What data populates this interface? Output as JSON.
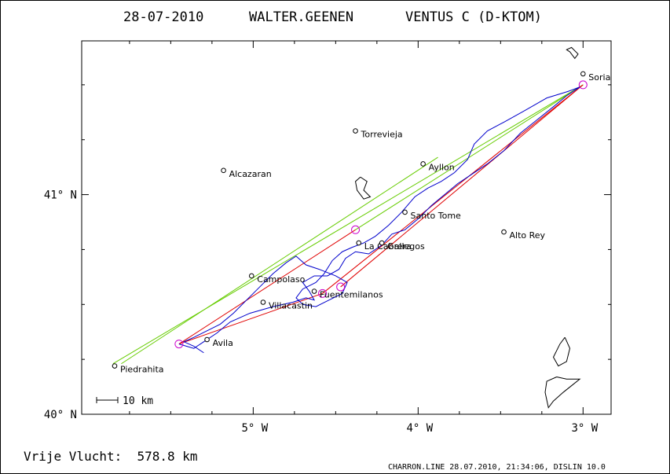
{
  "header": {
    "date": "28-07-2010",
    "pilot": "WALTER.GEENEN",
    "glider": "VENTUS C (D-KTOM)"
  },
  "axes": {
    "x_ticks": [
      {
        "value": -5,
        "label": "5° W"
      },
      {
        "value": -4,
        "label": "4° W"
      },
      {
        "value": -3,
        "label": "3° W"
      }
    ],
    "y_ticks": [
      {
        "value": 41,
        "label": "41° N"
      },
      {
        "value": 40,
        "label": "40° N"
      }
    ],
    "xlim": [
      -6.04,
      -2.83
    ],
    "ylim": [
      40.0,
      41.7
    ]
  },
  "scale_bar": {
    "label": "10 km"
  },
  "footer": {
    "distance": "Vrije Vlucht:  578.8 km",
    "credit": "CHARRON.LINE 28.07.2010, 21:34:06, DISLIN 10.0"
  },
  "places": [
    {
      "name": "Soria",
      "lon": -3.0,
      "lat": 41.55
    },
    {
      "name": "Torrevieja",
      "lon": -4.38,
      "lat": 41.29
    },
    {
      "name": "Ayllon",
      "lon": -3.97,
      "lat": 41.14
    },
    {
      "name": "Alcazaran",
      "lon": -5.18,
      "lat": 41.11
    },
    {
      "name": "Santo Tome",
      "lon": -4.08,
      "lat": 40.92
    },
    {
      "name": "Alto Rey",
      "lon": -3.48,
      "lat": 40.83
    },
    {
      "name": "La Cabrera",
      "lon": -4.36,
      "lat": 40.78
    },
    {
      "name": "Gallegos",
      "lon": -4.22,
      "lat": 40.78
    },
    {
      "name": "Campolaso",
      "lon": -5.01,
      "lat": 40.63
    },
    {
      "name": "Fuentemilanos",
      "lon": -4.63,
      "lat": 40.56
    },
    {
      "name": "Villacastin",
      "lon": -4.94,
      "lat": 40.51
    },
    {
      "name": "Avila",
      "lon": -5.28,
      "lat": 40.34
    },
    {
      "name": "Piedrahita",
      "lon": -5.84,
      "lat": 40.22
    }
  ],
  "turnpoints": [
    {
      "lon": -5.45,
      "lat": 40.32
    },
    {
      "lon": -4.58,
      "lat": 40.55
    },
    {
      "lon": -4.47,
      "lat": 40.58
    },
    {
      "lon": -4.38,
      "lat": 40.84
    },
    {
      "lon": -3.0,
      "lat": 41.5
    }
  ],
  "legs": {
    "red": [
      [
        [
          -5.45,
          40.32
        ],
        [
          -4.58,
          40.55
        ]
      ],
      [
        [
          -4.58,
          40.55
        ],
        [
          -3.0,
          41.5
        ]
      ],
      [
        [
          -5.45,
          40.32
        ],
        [
          -4.38,
          40.84
        ]
      ],
      [
        [
          -4.47,
          40.58
        ],
        [
          -3.0,
          41.5
        ]
      ]
    ],
    "green": [
      [
        [
          -5.85,
          40.23
        ],
        [
          -3.0,
          41.5
        ]
      ],
      [
        [
          -5.8,
          40.23
        ],
        [
          -3.88,
          41.17
        ]
      ],
      [
        [
          -4.38,
          40.84
        ],
        [
          -3.0,
          41.5
        ]
      ]
    ]
  },
  "track": [
    [
      -5.45,
      40.32
    ],
    [
      -5.36,
      40.3
    ],
    [
      -5.3,
      40.33
    ],
    [
      -5.22,
      40.37
    ],
    [
      -5.14,
      40.42
    ],
    [
      -5.02,
      40.46
    ],
    [
      -4.88,
      40.49
    ],
    [
      -4.76,
      40.51
    ],
    [
      -4.68,
      40.53
    ],
    [
      -4.63,
      40.52
    ],
    [
      -4.66,
      40.56
    ],
    [
      -4.7,
      40.6
    ],
    [
      -4.63,
      40.63
    ],
    [
      -4.55,
      40.63
    ],
    [
      -4.48,
      40.66
    ],
    [
      -4.44,
      40.71
    ],
    [
      -4.38,
      40.74
    ],
    [
      -4.3,
      40.73
    ],
    [
      -4.22,
      40.77
    ],
    [
      -4.16,
      40.82
    ],
    [
      -4.08,
      40.84
    ],
    [
      -4.0,
      40.89
    ],
    [
      -3.92,
      40.95
    ],
    [
      -3.84,
      41.0
    ],
    [
      -3.76,
      41.05
    ],
    [
      -3.68,
      41.09
    ],
    [
      -3.58,
      41.14
    ],
    [
      -3.48,
      41.2
    ],
    [
      -3.38,
      41.28
    ],
    [
      -3.28,
      41.34
    ],
    [
      -3.18,
      41.4
    ],
    [
      -3.1,
      41.45
    ],
    [
      -3.02,
      41.49
    ],
    [
      -3.09,
      41.47
    ],
    [
      -3.22,
      41.44
    ],
    [
      -3.36,
      41.38
    ],
    [
      -3.48,
      41.33
    ],
    [
      -3.58,
      41.29
    ],
    [
      -3.66,
      41.23
    ],
    [
      -3.7,
      41.16
    ],
    [
      -3.78,
      41.1
    ],
    [
      -3.86,
      41.06
    ],
    [
      -3.94,
      41.03
    ],
    [
      -4.02,
      40.99
    ],
    [
      -4.1,
      40.92
    ],
    [
      -4.18,
      40.86
    ],
    [
      -4.26,
      40.81
    ],
    [
      -4.33,
      40.78
    ],
    [
      -4.4,
      40.76
    ],
    [
      -4.46,
      40.74
    ],
    [
      -4.52,
      40.7
    ],
    [
      -4.57,
      40.64
    ],
    [
      -4.62,
      40.6
    ],
    [
      -4.7,
      40.57
    ],
    [
      -4.74,
      40.53
    ],
    [
      -4.7,
      40.5
    ],
    [
      -4.62,
      40.49
    ],
    [
      -4.54,
      40.52
    ],
    [
      -4.46,
      40.55
    ],
    [
      -4.43,
      40.6
    ],
    [
      -4.5,
      40.63
    ],
    [
      -4.6,
      40.66
    ],
    [
      -4.68,
      40.68
    ],
    [
      -4.74,
      40.72
    ],
    [
      -4.8,
      40.69
    ],
    [
      -4.88,
      40.64
    ],
    [
      -4.96,
      40.58
    ],
    [
      -5.04,
      40.52
    ],
    [
      -5.12,
      40.46
    ],
    [
      -5.2,
      40.41
    ],
    [
      -5.28,
      40.38
    ],
    [
      -5.36,
      40.35
    ],
    [
      -5.42,
      40.33
    ],
    [
      -5.36,
      40.31
    ],
    [
      -5.3,
      40.28
    ]
  ],
  "water": [
    [
      [
        -3.08,
        41.65
      ],
      [
        -3.05,
        41.62
      ],
      [
        -3.03,
        41.64
      ],
      [
        -3.07,
        41.67
      ],
      [
        -3.1,
        41.66
      ],
      [
        -3.08,
        41.65
      ]
    ],
    [
      [
        -4.35,
        41.08
      ],
      [
        -4.31,
        41.06
      ],
      [
        -4.33,
        41.02
      ],
      [
        -4.29,
        40.99
      ],
      [
        -4.33,
        40.98
      ],
      [
        -4.37,
        41.02
      ],
      [
        -4.38,
        41.06
      ],
      [
        -4.35,
        41.08
      ]
    ],
    [
      [
        -3.11,
        40.35
      ],
      [
        -3.08,
        40.3
      ],
      [
        -3.1,
        40.24
      ],
      [
        -3.15,
        40.22
      ],
      [
        -3.18,
        40.26
      ],
      [
        -3.14,
        40.32
      ],
      [
        -3.11,
        40.35
      ]
    ],
    [
      [
        -3.16,
        40.17
      ],
      [
        -3.1,
        40.16
      ],
      [
        -3.02,
        40.16
      ],
      [
        -3.07,
        40.13
      ],
      [
        -3.12,
        40.1
      ],
      [
        -3.18,
        40.06
      ],
      [
        -3.21,
        40.03
      ],
      [
        -3.23,
        40.1
      ],
      [
        -3.22,
        40.15
      ],
      [
        -3.16,
        40.17
      ]
    ]
  ]
}
